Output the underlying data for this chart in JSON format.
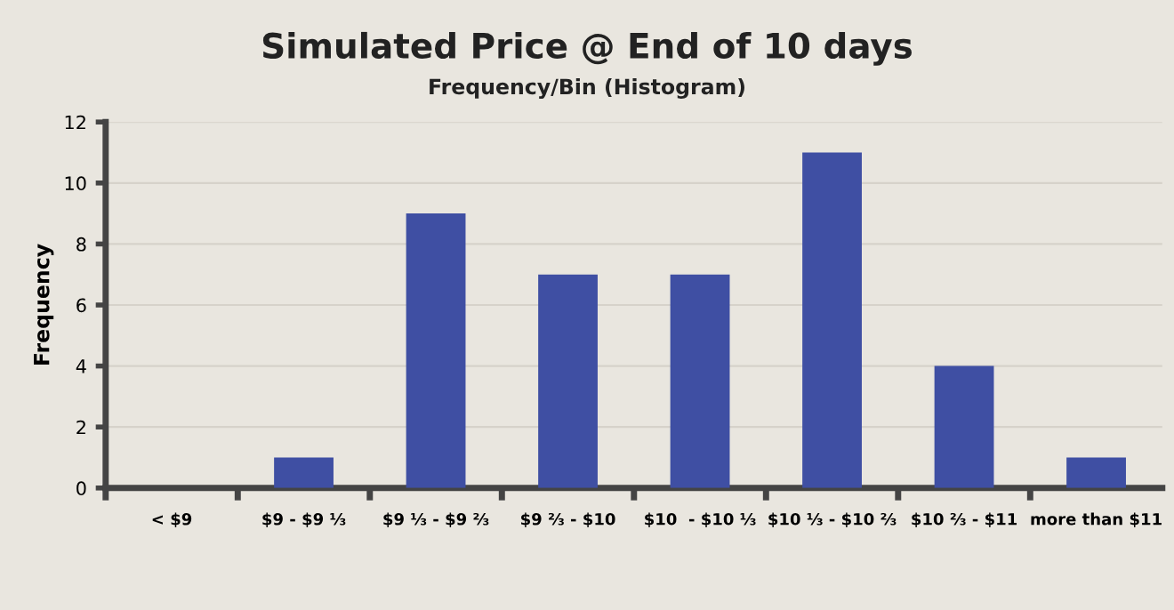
{
  "chart_data": {
    "type": "bar",
    "title": "Simulated Price @ End of 10 days",
    "subtitle": "Frequency/Bin (Histogram)",
    "ylabel": "Frequency",
    "categories": [
      "< $9",
      "$9 - $9 ⅓",
      "$9 ⅓ - $9 ⅔",
      "$9 ⅔ - $10",
      "$10  - $10 ⅓",
      "$10 ⅓ - $10 ⅔",
      "$10 ⅔ - $11",
      "more than $11"
    ],
    "values": [
      0,
      1,
      9,
      7,
      7,
      11,
      4,
      1
    ],
    "color": "#3f4fa3",
    "ylim": [
      0,
      12
    ],
    "yticks": [
      0,
      2,
      4,
      6,
      8,
      10,
      12
    ],
    "grid": "y",
    "legend": false
  }
}
